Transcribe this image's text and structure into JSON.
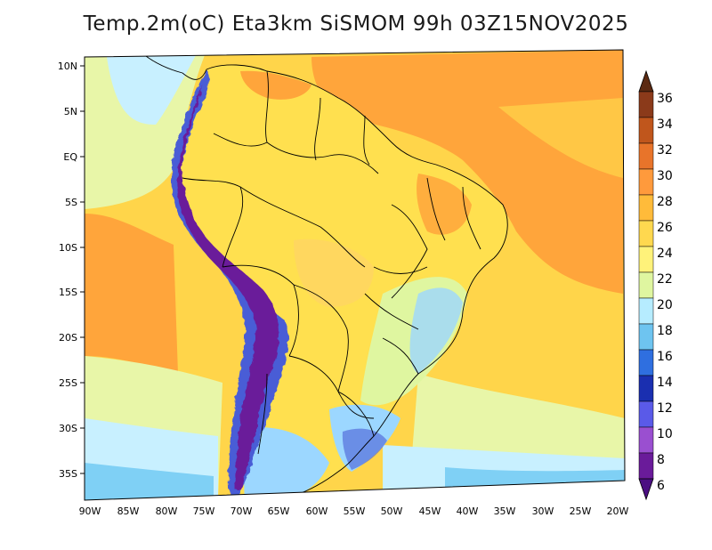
{
  "title": "Temp.2m(oC) Eta3km SiSMOM 99h 03Z15NOV2025",
  "map": {
    "lat_labels": [
      "10N",
      "5N",
      "EQ",
      "5S",
      "10S",
      "15S",
      "20S",
      "25S",
      "30S",
      "35S"
    ],
    "lon_labels": [
      "90W",
      "85W",
      "80W",
      "75W",
      "70W",
      "65W",
      "60W",
      "55W",
      "50W",
      "45W",
      "40W",
      "35W",
      "30W",
      "25W",
      "20W"
    ],
    "colors": {
      "ocean_warm": "#ffa53b",
      "ocean_mild": "#ffd54a",
      "coastal_22": "#e8f6a8",
      "coastal_20": "#c8f0ff",
      "coastal_18": "#7fd0f5",
      "land_main": "#ffe04f",
      "land_hot": "#ffa53b",
      "andes_cold": "#6a1b9a",
      "andes_cool": "#4a5dd6",
      "south_cool": "#9cd7ff",
      "border": "#000000"
    }
  },
  "colorbar": {
    "labels": [
      "36",
      "34",
      "32",
      "30",
      "28",
      "26",
      "24",
      "22",
      "20",
      "18",
      "16",
      "14",
      "12",
      "10",
      "8",
      "6"
    ],
    "colors": [
      "#5c2a12",
      "#8b3a1a",
      "#c0561c",
      "#e8742a",
      "#ff9a3c",
      "#ffbb3a",
      "#ffd84f",
      "#fff27a",
      "#dff6a0",
      "#b6ecff",
      "#6ec4f0",
      "#2f6fe0",
      "#1a2fb0",
      "#5a5ae8",
      "#9a4fd0",
      "#6a1b9a",
      "#4b0f82"
    ]
  }
}
